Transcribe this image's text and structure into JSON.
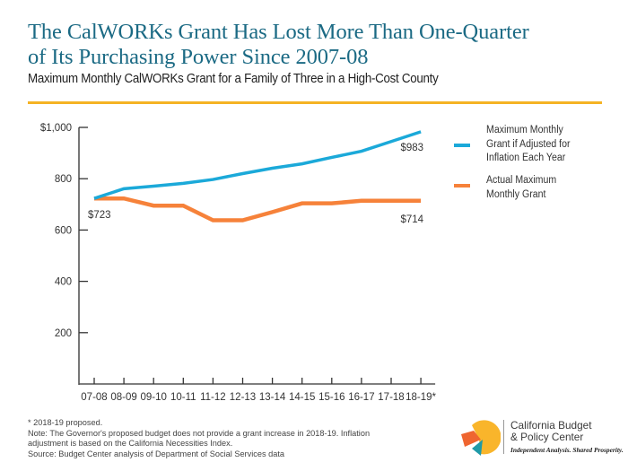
{
  "header": {
    "title_line1": "The CalWORKs Grant Has Lost More Than One-Quarter",
    "title_line2": "of Its Purchasing Power Since 2007-08",
    "subtitle": "Maximum Monthly CalWORKs Grant for a Family of Three in a High-Cost County"
  },
  "colors": {
    "title": "#1b6a84",
    "rule": "#f5b324",
    "inflation_series": "#1ba9d9",
    "actual_series": "#f6823a",
    "axis": "#555555"
  },
  "chart_data": {
    "type": "line",
    "title": "Maximum Monthly CalWORKs Grant for a Family of Three in a High-Cost County",
    "xlabel": "",
    "ylabel": "",
    "categories": [
      "07-08",
      "08-09",
      "09-10",
      "10-11",
      "11-12",
      "12-13",
      "13-14",
      "14-15",
      "15-16",
      "16-17",
      "17-18",
      "18-19*"
    ],
    "ylim": [
      0,
      1000
    ],
    "yticks": [
      200,
      400,
      600,
      800,
      1000
    ],
    "ytick_labels": [
      "200",
      "400",
      "600",
      "800",
      "$1,000"
    ],
    "grid": false,
    "legend_position": "right",
    "series": [
      {
        "name": "Maximum Monthly Grant if Adjusted for Inflation Each Year",
        "color": "#1ba9d9",
        "values": [
          723,
          761,
          771,
          782,
          797,
          820,
          841,
          858,
          883,
          907,
          945,
          983
        ]
      },
      {
        "name": "Actual Maximum Monthly Grant",
        "color": "#f6823a",
        "values": [
          723,
          723,
          695,
          695,
          638,
          638,
          670,
          704,
          704,
          714,
          714,
          714
        ]
      }
    ],
    "annotations": [
      {
        "text": "$723",
        "category": "07-08",
        "value": 723
      },
      {
        "text": "$983",
        "category": "18-19*",
        "value": 983
      },
      {
        "text": "$714",
        "category": "18-19*",
        "value": 714
      }
    ]
  },
  "legend": {
    "items": [
      {
        "label": "Maximum Monthly Grant if Adjusted for Inflation Each Year",
        "line1": "Maximum Monthly",
        "line2": "Grant if Adjusted for",
        "line3": "Inflation Each Year"
      },
      {
        "label": "Actual Maximum Monthly Grant",
        "line1": "Actual Maximum",
        "line2": "Monthly Grant"
      }
    ]
  },
  "footer": {
    "lines": [
      "* 2018-19 proposed.",
      "Note: The Governor's proposed budget does not provide a grant increase in 2018-19. Inflation",
      "adjustment is based on the California Necessities Index.",
      "Source: Budget Center analysis of Department of Social Services data"
    ]
  },
  "logo": {
    "name_line1": "California Budget",
    "name_line2": "& Policy Center",
    "tagline": "Independent Analysis. Shared Prosperity."
  }
}
